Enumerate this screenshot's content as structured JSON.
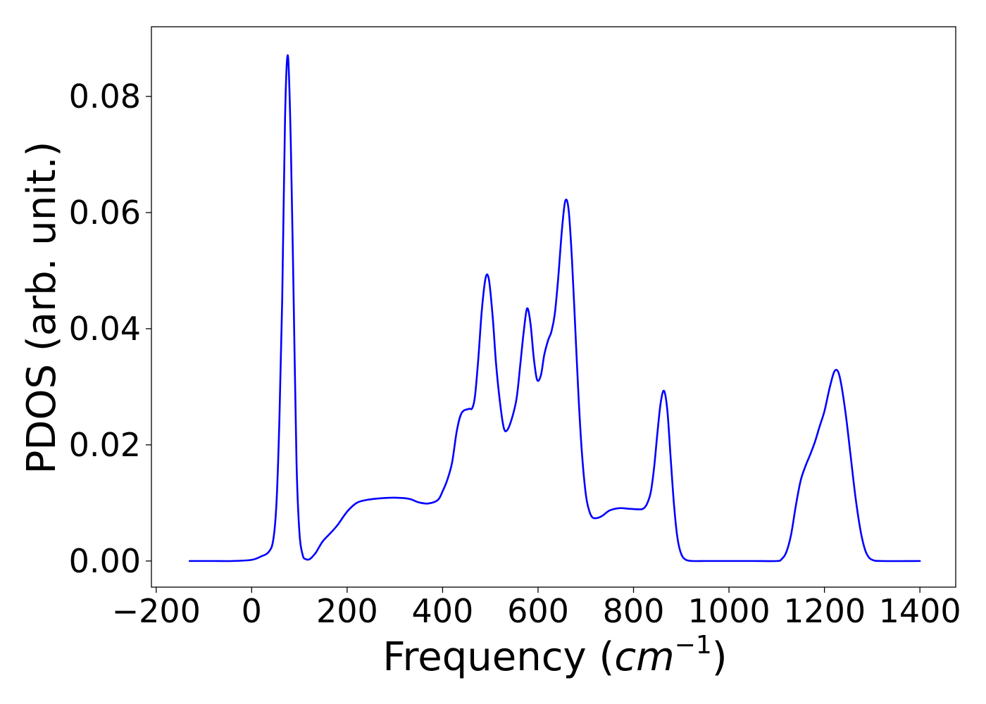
{
  "chart_data": {
    "type": "line",
    "title": "",
    "xlabel_main": "Frequency (",
    "xlabel_math": "cm",
    "xlabel_sup": "−1",
    "xlabel_close": ")",
    "ylabel": "PDOS (arb. unit.)",
    "xlim": [
      -210,
      1475
    ],
    "ylim": [
      -0.0045,
      0.092
    ],
    "xticks": [
      -200,
      0,
      200,
      400,
      600,
      800,
      1000,
      1200,
      1400
    ],
    "xtick_labels": [
      "−200",
      "0",
      "200",
      "400",
      "600",
      "800",
      "1000",
      "1200",
      "1400"
    ],
    "yticks": [
      0.0,
      0.02,
      0.04,
      0.06,
      0.08
    ],
    "ytick_labels": [
      "0.00",
      "0.02",
      "0.04",
      "0.06",
      "0.08"
    ],
    "grid": false,
    "series": [
      {
        "color": "#0000ff",
        "x": [
          -130,
          -80,
          -40,
          0,
          20,
          35,
          45,
          52,
          58,
          64,
          70,
          76,
          82,
          88,
          94,
          100,
          107,
          114,
          121,
          128,
          135,
          142,
          150,
          165,
          180,
          200,
          220,
          240,
          270,
          300,
          330,
          350,
          370,
          390,
          400,
          410,
          420,
          430,
          440,
          455,
          462,
          468,
          475,
          482,
          490,
          497,
          505,
          512,
          520,
          528,
          535,
          545,
          555,
          563,
          570,
          577,
          584,
          591,
          598,
          606,
          613,
          621,
          628,
          635,
          642,
          650,
          657,
          664,
          671,
          678,
          685,
          692,
          700,
          707,
          714,
          724,
          735,
          750,
          770,
          790,
          810,
          820,
          828,
          836,
          843,
          850,
          857,
          864,
          871,
          878,
          885,
          892,
          900,
          910,
          925,
          950,
          1000,
          1050,
          1100,
          1110,
          1120,
          1130,
          1140,
          1150,
          1160,
          1170,
          1180,
          1190,
          1200,
          1210,
          1220,
          1228,
          1235,
          1245,
          1255,
          1265,
          1275,
          1283,
          1290,
          1300,
          1320,
          1400
        ],
        "y": [
          0.0,
          0.0,
          0.0,
          0.0002,
          0.0008,
          0.0015,
          0.0035,
          0.01,
          0.024,
          0.045,
          0.0765,
          0.087,
          0.072,
          0.045,
          0.017,
          0.005,
          0.001,
          0.0003,
          0.0003,
          0.0008,
          0.0015,
          0.0025,
          0.0035,
          0.0048,
          0.0062,
          0.0085,
          0.01,
          0.0105,
          0.0108,
          0.0109,
          0.0107,
          0.0101,
          0.0099,
          0.0105,
          0.012,
          0.014,
          0.017,
          0.0225,
          0.0255,
          0.0262,
          0.0263,
          0.0285,
          0.035,
          0.043,
          0.0487,
          0.0485,
          0.042,
          0.034,
          0.0275,
          0.023,
          0.0225,
          0.0245,
          0.028,
          0.034,
          0.0395,
          0.0435,
          0.041,
          0.035,
          0.0312,
          0.032,
          0.0355,
          0.038,
          0.0395,
          0.0425,
          0.0485,
          0.057,
          0.062,
          0.0605,
          0.052,
          0.04,
          0.028,
          0.0185,
          0.0115,
          0.0087,
          0.0075,
          0.0074,
          0.0078,
          0.0087,
          0.0091,
          0.009,
          0.0089,
          0.009,
          0.0098,
          0.0118,
          0.016,
          0.022,
          0.0273,
          0.0293,
          0.0258,
          0.0175,
          0.0095,
          0.004,
          0.0012,
          0.0002,
          0.0,
          0.0,
          0.0,
          0.0,
          0.0,
          0.0003,
          0.0015,
          0.0045,
          0.0095,
          0.0138,
          0.0163,
          0.0183,
          0.0205,
          0.0232,
          0.0258,
          0.0295,
          0.0325,
          0.0327,
          0.0305,
          0.025,
          0.018,
          0.011,
          0.0055,
          0.0025,
          0.001,
          0.0002,
          0.0,
          0.0
        ]
      }
    ]
  }
}
